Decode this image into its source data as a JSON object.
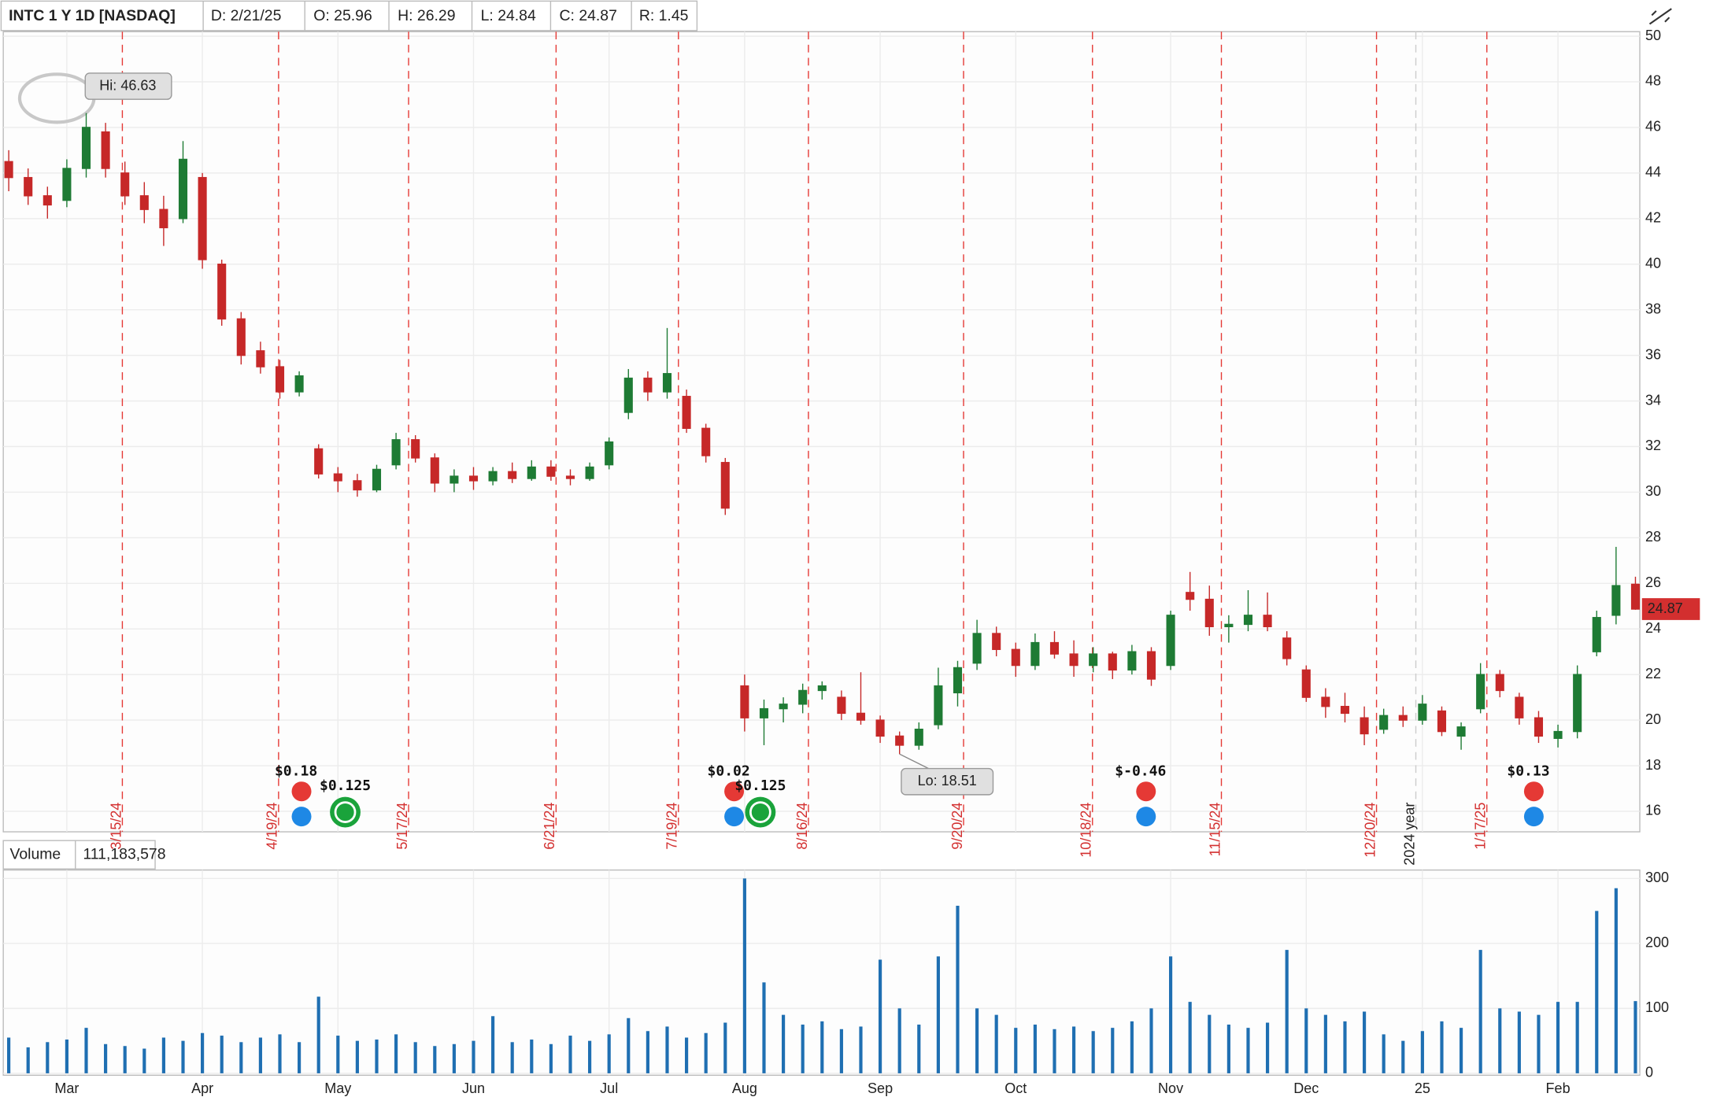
{
  "header": {
    "symbol": "INTC 1 Y 1D [NASDAQ]",
    "date": "D: 2/21/25",
    "open": "O: 25.96",
    "high": "H: 26.29",
    "low": "L: 24.84",
    "close": "C: 24.87",
    "range": "R: 1.45"
  },
  "chart_data": [
    {
      "type": "candlestick",
      "categories": [
        null,
        null,
        null,
        "Mar",
        null,
        null,
        null,
        null,
        null,
        null,
        "Apr",
        null,
        null,
        null,
        null,
        null,
        null,
        "May",
        null,
        null,
        null,
        null,
        null,
        null,
        "Jun",
        null,
        null,
        null,
        null,
        null,
        null,
        "Jul",
        null,
        null,
        null,
        null,
        null,
        null,
        "Aug",
        null,
        null,
        null,
        null,
        null,
        null,
        "Sep",
        null,
        null,
        null,
        null,
        null,
        null,
        "Oct",
        null,
        null,
        null,
        null,
        null,
        null,
        null,
        "Nov",
        null,
        null,
        null,
        null,
        null,
        null,
        "Dec",
        null,
        null,
        null,
        null,
        null,
        "25",
        null,
        null,
        null,
        null,
        null,
        null,
        "Feb",
        null,
        null,
        null,
        null
      ],
      "open": [
        44.5,
        43.8,
        43.0,
        42.8,
        44.2,
        45.8,
        44.0,
        43.0,
        42.4,
        42.0,
        43.8,
        40.0,
        37.6,
        36.2,
        35.5,
        34.4,
        31.9,
        30.8,
        30.5,
        30.1,
        31.2,
        32.3,
        31.5,
        30.4,
        30.7,
        30.5,
        30.9,
        30.6,
        31.1,
        30.7,
        30.6,
        31.2,
        33.5,
        35.0,
        34.4,
        34.2,
        32.8,
        31.3,
        21.5,
        20.1,
        20.5,
        20.7,
        21.3,
        21.0,
        20.3,
        20.0,
        19.3,
        18.9,
        19.8,
        21.2,
        22.5,
        23.8,
        23.1,
        22.4,
        23.4,
        22.9,
        22.4,
        22.9,
        22.2,
        23.0,
        22.4,
        25.6,
        25.3,
        24.1,
        24.2,
        24.6,
        23.6,
        22.2,
        21.0,
        20.6,
        20.1,
        19.6,
        20.2,
        20.0,
        20.4,
        19.3,
        20.5,
        22.0,
        21.0,
        20.1,
        19.2,
        19.5,
        23.0,
        24.6,
        25.96
      ],
      "high": [
        45.0,
        44.2,
        43.4,
        44.6,
        46.63,
        46.2,
        44.5,
        43.6,
        43.0,
        45.4,
        44.0,
        40.2,
        37.9,
        36.6,
        35.8,
        35.3,
        32.1,
        31.1,
        30.8,
        31.2,
        32.6,
        32.5,
        31.7,
        31.0,
        31.1,
        31.1,
        31.3,
        31.4,
        31.4,
        31.0,
        31.3,
        32.4,
        35.4,
        35.3,
        37.2,
        34.5,
        33.0,
        31.5,
        22.0,
        20.9,
        21.0,
        21.6,
        21.7,
        21.3,
        22.1,
        20.2,
        19.5,
        19.9,
        22.3,
        22.6,
        24.4,
        24.1,
        23.4,
        23.8,
        23.9,
        23.5,
        23.2,
        23.0,
        23.3,
        23.2,
        24.8,
        26.5,
        25.9,
        24.6,
        25.7,
        25.6,
        23.9,
        22.4,
        21.4,
        21.2,
        20.6,
        20.5,
        20.6,
        21.1,
        20.6,
        19.9,
        22.5,
        22.2,
        21.2,
        20.4,
        19.8,
        22.4,
        24.8,
        27.6,
        26.29
      ],
      "low": [
        43.2,
        42.6,
        42.0,
        42.5,
        43.8,
        43.8,
        42.6,
        41.8,
        40.8,
        41.8,
        39.8,
        37.3,
        35.6,
        35.2,
        34.1,
        34.2,
        30.6,
        30.0,
        29.8,
        30.0,
        31.0,
        31.3,
        30.0,
        30.0,
        30.1,
        30.3,
        30.4,
        30.5,
        30.5,
        30.3,
        30.5,
        31.0,
        33.2,
        34.0,
        34.1,
        32.6,
        31.3,
        29.0,
        19.5,
        18.9,
        19.9,
        20.3,
        20.9,
        20.0,
        19.8,
        19.0,
        18.51,
        18.7,
        19.6,
        20.6,
        22.2,
        22.8,
        21.9,
        22.2,
        22.7,
        21.9,
        22.1,
        21.8,
        22.0,
        21.5,
        22.2,
        24.8,
        23.7,
        23.4,
        23.9,
        23.9,
        22.4,
        20.8,
        20.1,
        19.9,
        18.9,
        19.4,
        19.7,
        19.8,
        19.3,
        18.7,
        20.3,
        21.0,
        19.8,
        19.0,
        18.8,
        19.2,
        22.8,
        24.2,
        24.84
      ],
      "close": [
        43.8,
        43.0,
        42.6,
        44.2,
        46.0,
        44.2,
        43.0,
        42.4,
        41.6,
        44.6,
        40.2,
        37.6,
        36.0,
        35.5,
        34.4,
        35.1,
        30.8,
        30.5,
        30.1,
        31.0,
        32.3,
        31.5,
        30.4,
        30.7,
        30.5,
        30.9,
        30.6,
        31.1,
        30.7,
        30.6,
        31.1,
        32.2,
        35.0,
        34.4,
        35.2,
        32.8,
        31.6,
        29.3,
        20.1,
        20.5,
        20.7,
        21.3,
        21.5,
        20.3,
        20.0,
        19.3,
        18.9,
        19.6,
        21.5,
        22.3,
        23.8,
        23.1,
        22.4,
        23.4,
        22.9,
        22.4,
        22.9,
        22.2,
        23.0,
        21.8,
        24.6,
        25.3,
        24.1,
        24.2,
        24.6,
        24.1,
        22.7,
        21.0,
        20.6,
        20.3,
        19.4,
        20.2,
        20.0,
        20.7,
        19.5,
        19.7,
        22.0,
        21.3,
        20.1,
        19.3,
        19.5,
        22.0,
        24.5,
        25.9,
        24.87
      ],
      "up_color": "#1e7b34",
      "down_color": "#c62828",
      "ylim": [
        15.1,
        50.2
      ],
      "yticks": [
        16,
        18,
        20,
        22,
        24,
        26,
        28,
        30,
        32,
        34,
        36,
        38,
        40,
        42,
        44,
        46,
        48,
        50
      ],
      "grid": true,
      "hi_label": "Hi: 46.63",
      "lo_label": "Lo: 18.51",
      "events": [
        "3/15/24",
        "4/19/24",
        "5/17/24",
        "6/21/24",
        "7/19/24",
        "8/16/24",
        "9/20/24",
        "10/18/24",
        "11/15/24",
        "12/20/24",
        "1/17/25"
      ],
      "year_marker": "2024 year",
      "earnings": [
        "$0.18",
        "$0.02",
        "$-0.46",
        "$0.13"
      ],
      "dividends": [
        "$0.125",
        "$0.125"
      ]
    },
    {
      "type": "bar",
      "title": "Volume",
      "readout": "111,183,578",
      "color": "#1f6fb2",
      "values": [
        55,
        40,
        48,
        52,
        70,
        45,
        42,
        38,
        55,
        50,
        62,
        58,
        48,
        55,
        60,
        48,
        118,
        58,
        50,
        52,
        60,
        48,
        42,
        45,
        50,
        88,
        48,
        52,
        45,
        58,
        50,
        60,
        85,
        65,
        72,
        55,
        62,
        78,
        300,
        140,
        90,
        75,
        80,
        68,
        72,
        175,
        100,
        75,
        180,
        258,
        100,
        90,
        70,
        75,
        68,
        72,
        65,
        70,
        80,
        100,
        180,
        110,
        90,
        75,
        70,
        78,
        190,
        100,
        90,
        80,
        95,
        60,
        50,
        65,
        80,
        70,
        190,
        100,
        95,
        90,
        110,
        110,
        250,
        285,
        111.183578
      ],
      "ylim": [
        -3,
        313
      ],
      "yticks": [
        0,
        100,
        200,
        300
      ]
    }
  ]
}
